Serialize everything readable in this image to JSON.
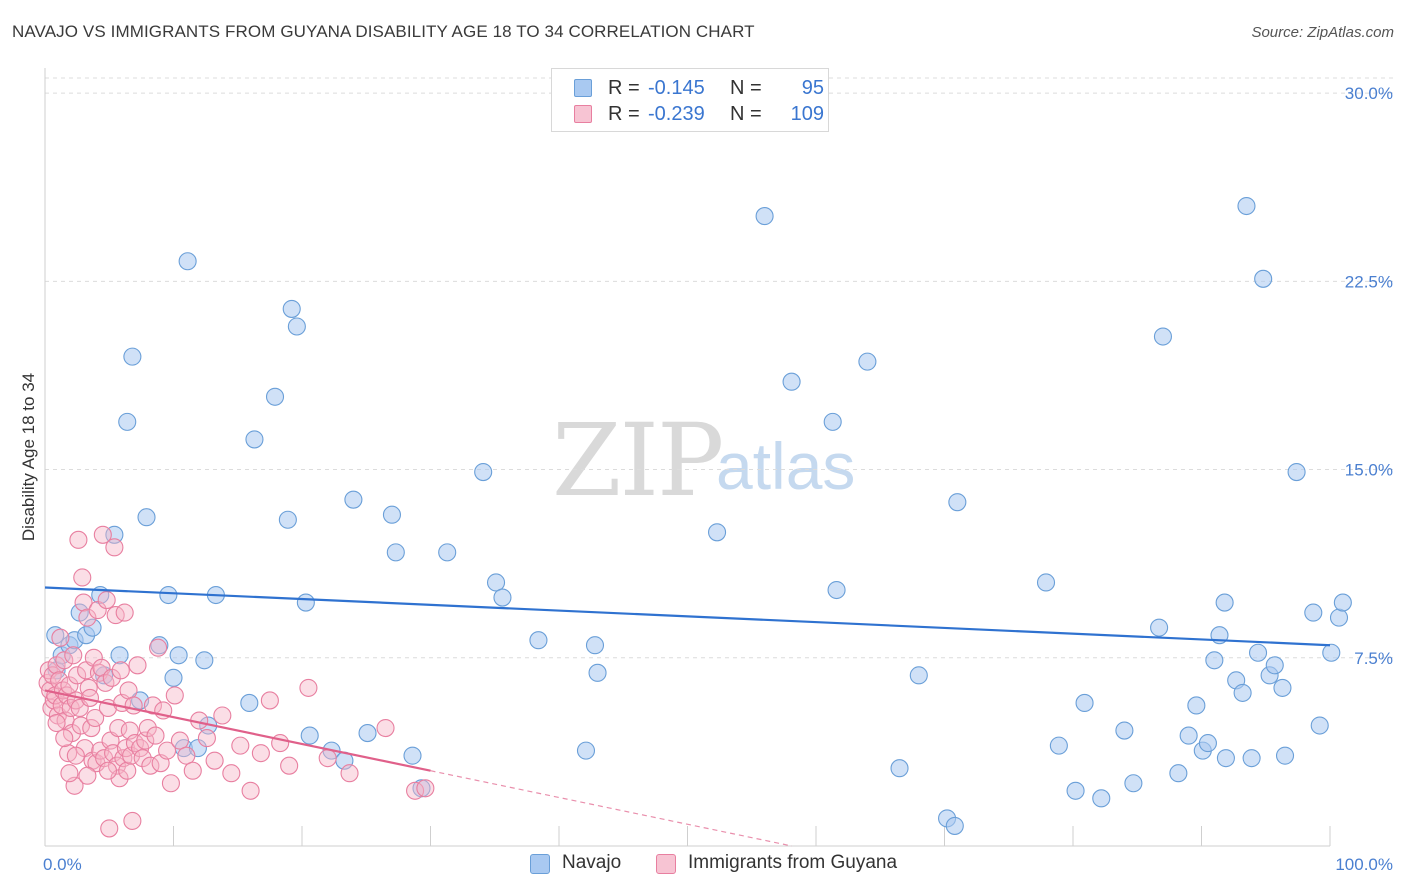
{
  "header": {
    "title": "NAVAJO VS IMMIGRANTS FROM GUYANA DISABILITY AGE 18 TO 34 CORRELATION CHART",
    "source": "Source: ZipAtlas.com"
  },
  "watermark": {
    "part1": "ZIP",
    "part2": "atlas"
  },
  "legend": {
    "rows": [
      {
        "r_label": "R =",
        "r_value": "-0.145",
        "n_label": "N =",
        "n_value": "95",
        "color": "#9dc3f0",
        "border": "#6a9fd8"
      },
      {
        "r_label": "R =",
        "r_value": "-0.239",
        "n_label": "N =",
        "n_value": "109",
        "color": "#f7b6c8",
        "border": "#e87fa0"
      }
    ]
  },
  "bottom_legend": {
    "series1": "Navajo",
    "series2": "Immigrants from Guyana"
  },
  "colors": {
    "navajo_fill": "#a9c9f1",
    "navajo_stroke": "#6a9fd8",
    "navajo_line": "#2f72d0",
    "guyana_fill": "#f7b6c8",
    "guyana_stroke": "#e87fa0",
    "guyana_line": "#e0608a",
    "grid": "#dcdcdc",
    "tick_label": "#4a7fd0"
  },
  "chart_data": {
    "type": "scatter",
    "title": "NAVAJO VS IMMIGRANTS FROM GUYANA DISABILITY AGE 18 TO 34 CORRELATION CHART",
    "xlabel": "",
    "ylabel": "Disability Age 18 to 34",
    "xlim": [
      0,
      100
    ],
    "ylim": [
      0,
      31
    ],
    "x_tick_labels": [
      "0.0%",
      "100.0%"
    ],
    "y_ticks": [
      7.5,
      15.0,
      22.5,
      30.0
    ],
    "y_tick_labels": [
      "7.5%",
      "15.0%",
      "22.5%",
      "30.0%"
    ],
    "series": [
      {
        "name": "Navajo",
        "trend": {
          "x": [
            0,
            100
          ],
          "y": [
            10.3,
            8.0
          ]
        },
        "points": [
          [
            0.8,
            8.4
          ],
          [
            0.9,
            7.0
          ],
          [
            1.3,
            7.6
          ],
          [
            1.9,
            8.0
          ],
          [
            2.3,
            8.2
          ],
          [
            2.7,
            9.3
          ],
          [
            3.2,
            8.4
          ],
          [
            3.7,
            8.7
          ],
          [
            4.3,
            10.0
          ],
          [
            4.6,
            6.8
          ],
          [
            5.4,
            12.4
          ],
          [
            5.8,
            7.6
          ],
          [
            6.4,
            16.9
          ],
          [
            6.8,
            19.5
          ],
          [
            7.4,
            5.8
          ],
          [
            7.9,
            13.1
          ],
          [
            8.9,
            8.0
          ],
          [
            9.6,
            10.0
          ],
          [
            10.0,
            6.7
          ],
          [
            10.4,
            7.6
          ],
          [
            10.8,
            3.9
          ],
          [
            11.1,
            23.3
          ],
          [
            11.9,
            3.9
          ],
          [
            12.4,
            7.4
          ],
          [
            12.7,
            4.8
          ],
          [
            13.3,
            10.0
          ],
          [
            15.9,
            5.7
          ],
          [
            16.3,
            16.2
          ],
          [
            17.9,
            17.9
          ],
          [
            18.9,
            13.0
          ],
          [
            19.2,
            21.4
          ],
          [
            19.6,
            20.7
          ],
          [
            20.3,
            9.7
          ],
          [
            20.6,
            4.4
          ],
          [
            22.3,
            3.8
          ],
          [
            23.3,
            3.4
          ],
          [
            24.0,
            13.8
          ],
          [
            25.1,
            4.5
          ],
          [
            27.0,
            13.2
          ],
          [
            27.3,
            11.7
          ],
          [
            28.6,
            3.6
          ],
          [
            29.3,
            2.3
          ],
          [
            31.3,
            11.7
          ],
          [
            34.1,
            14.9
          ],
          [
            35.1,
            10.5
          ],
          [
            35.6,
            9.9
          ],
          [
            38.4,
            8.2
          ],
          [
            42.1,
            3.8
          ],
          [
            42.8,
            8.0
          ],
          [
            43.0,
            6.9
          ],
          [
            52.3,
            12.5
          ],
          [
            56.0,
            25.1
          ],
          [
            58.1,
            18.5
          ],
          [
            61.3,
            16.9
          ],
          [
            61.6,
            10.2
          ],
          [
            64.0,
            19.3
          ],
          [
            66.5,
            3.1
          ],
          [
            68.0,
            6.8
          ],
          [
            70.2,
            1.1
          ],
          [
            70.8,
            0.8
          ],
          [
            71.0,
            13.7
          ],
          [
            77.9,
            10.5
          ],
          [
            78.9,
            4.0
          ],
          [
            80.2,
            2.2
          ],
          [
            80.9,
            5.7
          ],
          [
            82.2,
            1.9
          ],
          [
            84.0,
            4.6
          ],
          [
            84.7,
            2.5
          ],
          [
            86.7,
            8.7
          ],
          [
            87.0,
            20.3
          ],
          [
            88.2,
            2.9
          ],
          [
            89.0,
            4.4
          ],
          [
            89.6,
            5.6
          ],
          [
            90.1,
            3.8
          ],
          [
            90.5,
            4.1
          ],
          [
            91.0,
            7.4
          ],
          [
            91.4,
            8.4
          ],
          [
            91.8,
            9.7
          ],
          [
            91.9,
            3.5
          ],
          [
            92.7,
            6.6
          ],
          [
            93.2,
            6.1
          ],
          [
            93.5,
            25.5
          ],
          [
            93.9,
            3.5
          ],
          [
            94.4,
            7.7
          ],
          [
            94.8,
            22.6
          ],
          [
            95.3,
            6.8
          ],
          [
            95.7,
            7.2
          ],
          [
            96.3,
            6.3
          ],
          [
            96.5,
            3.6
          ],
          [
            97.4,
            14.9
          ],
          [
            98.7,
            9.3
          ],
          [
            99.2,
            4.8
          ],
          [
            100.1,
            7.7
          ],
          [
            100.7,
            9.1
          ],
          [
            101.0,
            9.7
          ]
        ]
      },
      {
        "name": "Immigrants from Guyana",
        "trend": {
          "x": [
            0,
            30
          ],
          "y": [
            6.2,
            3.0
          ]
        },
        "trend_extrapolated": {
          "x": [
            30,
            60
          ],
          "y": [
            3.0,
            -0.2
          ]
        },
        "points": [
          [
            0.2,
            6.5
          ],
          [
            0.3,
            7.0
          ],
          [
            0.4,
            6.2
          ],
          [
            0.5,
            5.5
          ],
          [
            0.6,
            6.8
          ],
          [
            0.7,
            5.8
          ],
          [
            0.8,
            6.0
          ],
          [
            0.9,
            7.2
          ],
          [
            1.0,
            5.2
          ],
          [
            1.1,
            6.6
          ],
          [
            1.2,
            8.3
          ],
          [
            1.3,
            5.6
          ],
          [
            1.4,
            6.2
          ],
          [
            1.5,
            7.4
          ],
          [
            1.6,
            5.0
          ],
          [
            1.7,
            6.0
          ],
          [
            1.8,
            3.7
          ],
          [
            1.9,
            6.4
          ],
          [
            2.0,
            5.5
          ],
          [
            2.1,
            4.5
          ],
          [
            2.2,
            7.6
          ],
          [
            2.3,
            2.4
          ],
          [
            2.4,
            5.8
          ],
          [
            2.5,
            6.8
          ],
          [
            2.6,
            12.2
          ],
          [
            2.7,
            5.5
          ],
          [
            2.8,
            4.8
          ],
          [
            2.9,
            10.7
          ],
          [
            3.0,
            9.7
          ],
          [
            3.1,
            3.9
          ],
          [
            3.2,
            7.0
          ],
          [
            3.3,
            9.1
          ],
          [
            3.4,
            6.3
          ],
          [
            3.5,
            5.9
          ],
          [
            3.6,
            4.7
          ],
          [
            3.7,
            3.4
          ],
          [
            3.8,
            7.5
          ],
          [
            3.9,
            5.1
          ],
          [
            4.0,
            3.3
          ],
          [
            4.1,
            9.4
          ],
          [
            4.2,
            6.9
          ],
          [
            4.3,
            3.8
          ],
          [
            4.4,
            7.1
          ],
          [
            4.5,
            12.4
          ],
          [
            4.6,
            3.5
          ],
          [
            4.7,
            6.5
          ],
          [
            4.8,
            9.8
          ],
          [
            4.9,
            5.5
          ],
          [
            5.0,
            0.7
          ],
          [
            5.1,
            4.2
          ],
          [
            5.2,
            6.7
          ],
          [
            5.3,
            3.7
          ],
          [
            5.4,
            11.9
          ],
          [
            5.5,
            9.2
          ],
          [
            5.6,
            3.2
          ],
          [
            5.7,
            4.7
          ],
          [
            5.8,
            2.7
          ],
          [
            5.9,
            7.0
          ],
          [
            6.0,
            5.7
          ],
          [
            6.1,
            3.5
          ],
          [
            6.2,
            9.3
          ],
          [
            6.3,
            3.9
          ],
          [
            6.4,
            3.0
          ],
          [
            6.5,
            6.2
          ],
          [
            6.6,
            4.6
          ],
          [
            6.7,
            3.6
          ],
          [
            6.8,
            1.0
          ],
          [
            6.9,
            5.6
          ],
          [
            7.0,
            4.1
          ],
          [
            7.2,
            7.2
          ],
          [
            7.4,
            3.9
          ],
          [
            7.6,
            3.5
          ],
          [
            7.8,
            4.2
          ],
          [
            8.0,
            4.7
          ],
          [
            8.2,
            3.2
          ],
          [
            8.4,
            5.6
          ],
          [
            8.6,
            4.4
          ],
          [
            8.8,
            7.9
          ],
          [
            9.0,
            3.3
          ],
          [
            9.2,
            5.4
          ],
          [
            9.5,
            3.8
          ],
          [
            9.8,
            2.5
          ],
          [
            10.1,
            6.0
          ],
          [
            10.5,
            4.2
          ],
          [
            11.0,
            3.6
          ],
          [
            11.5,
            3.0
          ],
          [
            12.0,
            5.0
          ],
          [
            12.6,
            4.3
          ],
          [
            13.2,
            3.4
          ],
          [
            13.8,
            5.2
          ],
          [
            14.5,
            2.9
          ],
          [
            15.2,
            4.0
          ],
          [
            16.0,
            2.2
          ],
          [
            16.8,
            3.7
          ],
          [
            17.5,
            5.8
          ],
          [
            18.3,
            4.1
          ],
          [
            19.0,
            3.2
          ],
          [
            20.5,
            6.3
          ],
          [
            22.0,
            3.5
          ],
          [
            23.7,
            2.9
          ],
          [
            26.5,
            4.7
          ],
          [
            28.8,
            2.2
          ],
          [
            29.6,
            2.3
          ],
          [
            1.5,
            4.3
          ],
          [
            2.4,
            3.6
          ],
          [
            3.3,
            2.8
          ],
          [
            0.9,
            4.9
          ],
          [
            1.9,
            2.9
          ],
          [
            4.9,
            3.0
          ]
        ]
      }
    ]
  }
}
